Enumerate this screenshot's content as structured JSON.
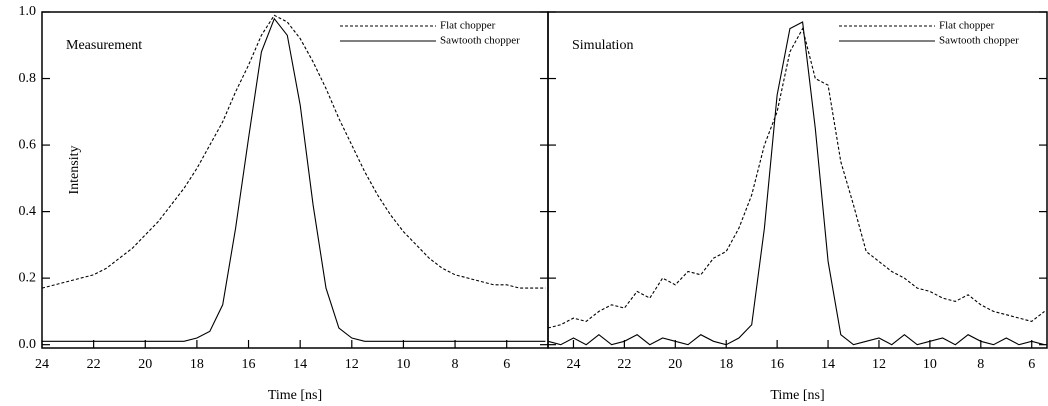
{
  "chart_data": [
    {
      "type": "line",
      "annotation": "Measurement",
      "ylabel": "Intensity",
      "xlabel": "Time [ns]",
      "x": [
        24,
        23.5,
        23,
        22.5,
        22,
        21.5,
        21,
        20.5,
        20,
        19.5,
        19,
        18.5,
        18,
        17.5,
        17,
        16.5,
        16,
        15.5,
        15,
        14.5,
        14,
        13.5,
        13,
        12.5,
        12,
        11.5,
        11,
        10.5,
        10,
        9.5,
        9,
        8.5,
        8,
        7.5,
        7,
        6.5,
        6,
        5.5,
        5,
        4.5
      ],
      "series": [
        {
          "name": "Flat chopper",
          "color": "#000000",
          "dash": true,
          "values": [
            0.17,
            0.18,
            0.19,
            0.2,
            0.21,
            0.23,
            0.26,
            0.29,
            0.33,
            0.37,
            0.42,
            0.47,
            0.53,
            0.6,
            0.67,
            0.76,
            0.84,
            0.93,
            0.99,
            0.97,
            0.92,
            0.85,
            0.77,
            0.68,
            0.6,
            0.52,
            0.45,
            0.39,
            0.34,
            0.3,
            0.26,
            0.23,
            0.21,
            0.2,
            0.19,
            0.18,
            0.18,
            0.17,
            0.17,
            0.17
          ]
        },
        {
          "name": "Sawtooth chopper",
          "color": "#000000",
          "dash": false,
          "values": [
            0.01,
            0.01,
            0.01,
            0.01,
            0.01,
            0.01,
            0.01,
            0.01,
            0.01,
            0.01,
            0.01,
            0.01,
            0.02,
            0.04,
            0.12,
            0.35,
            0.62,
            0.88,
            0.98,
            0.93,
            0.72,
            0.42,
            0.17,
            0.05,
            0.02,
            0.01,
            0.01,
            0.01,
            0.01,
            0.01,
            0.01,
            0.01,
            0.01,
            0.01,
            0.01,
            0.01,
            0.01,
            0.01,
            0.01,
            0.01
          ]
        }
      ],
      "xlim": [
        24,
        4.4
      ],
      "xticks": [
        24,
        22,
        20,
        18,
        16,
        14,
        12,
        10,
        8,
        6
      ],
      "ylim": [
        -0.01,
        1.0
      ],
      "yticks": [
        {
          "value": 0,
          "label": "0.0"
        },
        0.2,
        0.4,
        0.6,
        0.8,
        {
          "value": 1,
          "label": "1.0"
        }
      ],
      "legend": "upper right"
    },
    {
      "type": "line",
      "annotation": "Simulation",
      "xlabel": "Time [ns]",
      "x": [
        25,
        24.5,
        24,
        23.5,
        23,
        22.5,
        22,
        21.5,
        21,
        20.5,
        20,
        19.5,
        19,
        18.5,
        18,
        17.5,
        17,
        16.5,
        16,
        15.5,
        15,
        14.5,
        14,
        13.5,
        13,
        12.5,
        12,
        11.5,
        11,
        10.5,
        10,
        9.5,
        9,
        8.5,
        8,
        7.5,
        7,
        6.5,
        6,
        5.5
      ],
      "series": [
        {
          "name": "Flat chopper",
          "color": "#000000",
          "dash": true,
          "values": [
            0.05,
            0.06,
            0.08,
            0.07,
            0.1,
            0.12,
            0.11,
            0.16,
            0.14,
            0.2,
            0.18,
            0.22,
            0.21,
            0.26,
            0.28,
            0.35,
            0.45,
            0.6,
            0.7,
            0.88,
            0.95,
            0.8,
            0.78,
            0.55,
            0.42,
            0.28,
            0.25,
            0.22,
            0.2,
            0.17,
            0.16,
            0.14,
            0.13,
            0.15,
            0.12,
            0.1,
            0.09,
            0.08,
            0.07,
            0.1
          ]
        },
        {
          "name": "Sawtooth chopper",
          "color": "#000000",
          "dash": false,
          "values": [
            0.01,
            0.0,
            0.02,
            0.0,
            0.03,
            0.0,
            0.01,
            0.03,
            0.0,
            0.02,
            0.01,
            0.0,
            0.03,
            0.01,
            0.0,
            0.02,
            0.06,
            0.35,
            0.75,
            0.95,
            0.97,
            0.65,
            0.25,
            0.03,
            0.0,
            0.01,
            0.02,
            0.0,
            0.03,
            0.0,
            0.01,
            0.02,
            0.0,
            0.03,
            0.01,
            0.0,
            0.02,
            0.0,
            0.01,
            0.0
          ]
        }
      ],
      "xlim": [
        25,
        5.4
      ],
      "xticks": [
        24,
        22,
        20,
        18,
        16,
        14,
        12,
        10,
        8,
        6
      ],
      "ylim": [
        -0.01,
        1.0
      ],
      "yticks": [
        0,
        0.2,
        0.4,
        0.6,
        0.8,
        1
      ],
      "legend": "upper right"
    }
  ]
}
